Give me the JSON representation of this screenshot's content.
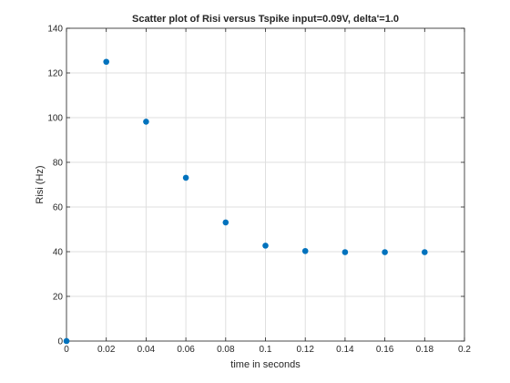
{
  "chart_data": {
    "type": "scatter",
    "title": "Scatter plot of Risi versus Tspike input=0.09V, delta'=1.0",
    "xlabel": "time in seconds",
    "ylabel": "Risi (Hz)",
    "xlim": [
      0,
      0.2
    ],
    "ylim": [
      0,
      140
    ],
    "xticks": [
      0,
      0.02,
      0.04,
      0.06,
      0.08,
      0.1,
      0.12,
      0.14,
      0.16,
      0.18,
      0.2
    ],
    "xtick_labels": [
      "0",
      "0.02",
      "0.04",
      "0.06",
      "0.08",
      "0.1",
      "0.12",
      "0.14",
      "0.16",
      "0.18",
      "0.2"
    ],
    "yticks": [
      0,
      20,
      40,
      60,
      80,
      100,
      120,
      140
    ],
    "ytick_labels": [
      "0",
      "20",
      "40",
      "60",
      "80",
      "100",
      "120",
      "140"
    ],
    "grid": true,
    "marker_color": "#0072bd",
    "series": [
      {
        "x": [
          0,
          0.02,
          0.04,
          0.06,
          0.08,
          0.1,
          0.12,
          0.14,
          0.16,
          0.18
        ],
        "y": [
          0,
          125,
          98.2,
          73.1,
          53.1,
          42.7,
          40.3,
          39.8,
          39.8,
          39.8
        ]
      }
    ]
  }
}
